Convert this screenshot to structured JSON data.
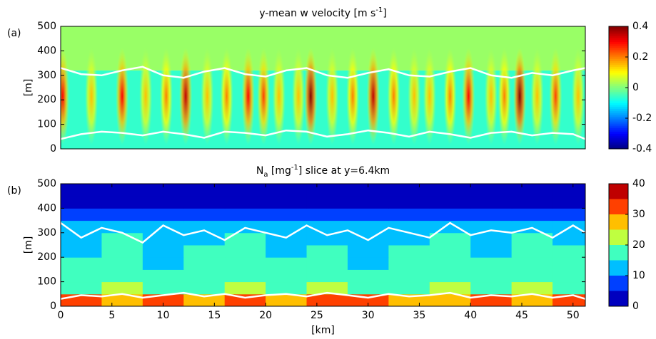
{
  "chart_data": [
    {
      "type": "heatmap",
      "panel_label": "(a)",
      "title": [
        "y-mean w velocity [m s",
        "-1",
        "]"
      ],
      "title_style": [
        "normal",
        "sup",
        "normal"
      ],
      "y_label": "[m]",
      "xlim": [
        0,
        51.2
      ],
      "ylim": [
        0,
        500
      ],
      "yticks": [
        0,
        100,
        200,
        300,
        400,
        500
      ],
      "clim": [
        -0.4,
        0.4
      ],
      "cticks": [
        -0.4,
        -0.2,
        0,
        0.2,
        0.4
      ],
      "layers": {
        "z_edges": [
          0,
          320,
          500
        ],
        "values": [
          -0.06,
          0.02
        ]
      },
      "cores": {
        "x": [
          0.2,
          3,
          6,
          8.3,
          10.3,
          12.2,
          14.3,
          16.2,
          18.3,
          19.8,
          21.3,
          23.2,
          24.4,
          26.5,
          28.5,
          30.5,
          32.5,
          34.5,
          36,
          38,
          39.8,
          42,
          43.3,
          44.8,
          46.5,
          48.3,
          50.5
        ],
        "values": [
          0.3,
          0.15,
          0.3,
          0.15,
          0.2,
          0.35,
          0.15,
          0.2,
          0.3,
          0.25,
          0.15,
          0.15,
          0.4,
          0.15,
          0.2,
          0.35,
          0.2,
          0.15,
          0.15,
          0.2,
          0.3,
          0.15,
          0.2,
          0.4,
          0.15,
          0.25,
          0.15
        ]
      },
      "lines": [
        {
          "x": [
            0,
            2,
            4,
            6,
            8,
            10,
            12,
            14,
            16,
            18,
            20,
            22,
            24,
            26,
            28,
            30,
            32,
            34,
            36,
            38,
            40,
            42,
            44,
            46,
            48,
            50,
            51.2
          ],
          "y": [
            330,
            305,
            300,
            320,
            335,
            300,
            290,
            315,
            330,
            305,
            295,
            320,
            330,
            300,
            290,
            310,
            325,
            300,
            295,
            315,
            330,
            300,
            290,
            310,
            300,
            320,
            330
          ]
        },
        {
          "x": [
            0,
            2,
            4,
            6,
            8,
            10,
            12,
            14,
            16,
            18,
            20,
            22,
            24,
            26,
            28,
            30,
            32,
            34,
            36,
            38,
            40,
            42,
            44,
            46,
            48,
            50,
            51.2
          ],
          "y": [
            40,
            60,
            70,
            65,
            55,
            70,
            60,
            45,
            70,
            65,
            55,
            75,
            70,
            50,
            60,
            75,
            65,
            50,
            70,
            60,
            45,
            65,
            70,
            55,
            65,
            60,
            40
          ]
        }
      ]
    },
    {
      "type": "heatmap",
      "panel_label": "(b)",
      "title": [
        "N",
        "a",
        " [mg",
        "-1",
        "] slice at y=6.4km"
      ],
      "title_style": [
        "normal",
        "sub",
        "normal",
        "sup",
        "normal"
      ],
      "y_label": "[m]",
      "x_label": "[km]",
      "xlim": [
        0,
        51.2
      ],
      "ylim": [
        0,
        500
      ],
      "yticks": [
        0,
        100,
        200,
        300,
        400,
        500
      ],
      "xticks": [
        0,
        5,
        10,
        15,
        20,
        25,
        30,
        35,
        40,
        45,
        50
      ],
      "clim": [
        0,
        40
      ],
      "cticks": [
        0,
        10,
        20,
        30,
        40
      ],
      "levels": [
        0,
        5,
        10,
        15,
        20,
        25,
        30,
        35,
        40
      ],
      "grid_data": {
        "x_edges": [
          0,
          4,
          8,
          12,
          16,
          20,
          24,
          28,
          32,
          36,
          40,
          44,
          48,
          51.2
        ],
        "z_edges": [
          0,
          50,
          100,
          150,
          200,
          250,
          300,
          350,
          400,
          450,
          500
        ],
        "values": [
          [
            30,
            28,
            31,
            29,
            30,
            27,
            31,
            30,
            28,
            29,
            31,
            28,
            30
          ],
          [
            18,
            20,
            17,
            19,
            21,
            18,
            20,
            17,
            19,
            20,
            18,
            21,
            19
          ],
          [
            16,
            18,
            15,
            17,
            19,
            16,
            18,
            15,
            17,
            18,
            16,
            19,
            17
          ],
          [
            15,
            17,
            14,
            16,
            18,
            15,
            17,
            14,
            16,
            17,
            15,
            18,
            16
          ],
          [
            14,
            16,
            13,
            15,
            17,
            14,
            16,
            13,
            15,
            16,
            14,
            17,
            15
          ],
          [
            13,
            15,
            12,
            14,
            15,
            13,
            14,
            12,
            14,
            15,
            13,
            15,
            14
          ],
          [
            11,
            12,
            10,
            12,
            13,
            11,
            12,
            10,
            12,
            12,
            11,
            13,
            12
          ],
          [
            7,
            8,
            6,
            8,
            9,
            7,
            8,
            6,
            8,
            8,
            7,
            9,
            8
          ],
          [
            2,
            2,
            2,
            2,
            2,
            2,
            2,
            2,
            2,
            2,
            2,
            2,
            2
          ],
          [
            1,
            1,
            1,
            1,
            1,
            1,
            1,
            1,
            1,
            1,
            1,
            1,
            1
          ]
        ]
      },
      "lines": [
        {
          "x": [
            0,
            2,
            4,
            6,
            8,
            10,
            12,
            14,
            16,
            18,
            20,
            22,
            24,
            26,
            28,
            30,
            32,
            34,
            36,
            38,
            40,
            42,
            44,
            46,
            48,
            50,
            51.2
          ],
          "y": [
            340,
            280,
            320,
            300,
            260,
            330,
            290,
            310,
            270,
            320,
            300,
            280,
            330,
            290,
            310,
            270,
            320,
            300,
            280,
            340,
            290,
            310,
            300,
            320,
            280,
            330,
            300
          ]
        },
        {
          "x": [
            0,
            2,
            4,
            6,
            8,
            10,
            12,
            14,
            16,
            18,
            20,
            22,
            24,
            26,
            28,
            30,
            32,
            34,
            36,
            38,
            40,
            42,
            44,
            46,
            48,
            50,
            51.2
          ],
          "y": [
            30,
            45,
            40,
            50,
            35,
            45,
            55,
            40,
            50,
            35,
            45,
            50,
            40,
            55,
            45,
            35,
            50,
            40,
            45,
            55,
            35,
            45,
            40,
            50,
            35,
            45,
            30
          ]
        }
      ]
    }
  ]
}
